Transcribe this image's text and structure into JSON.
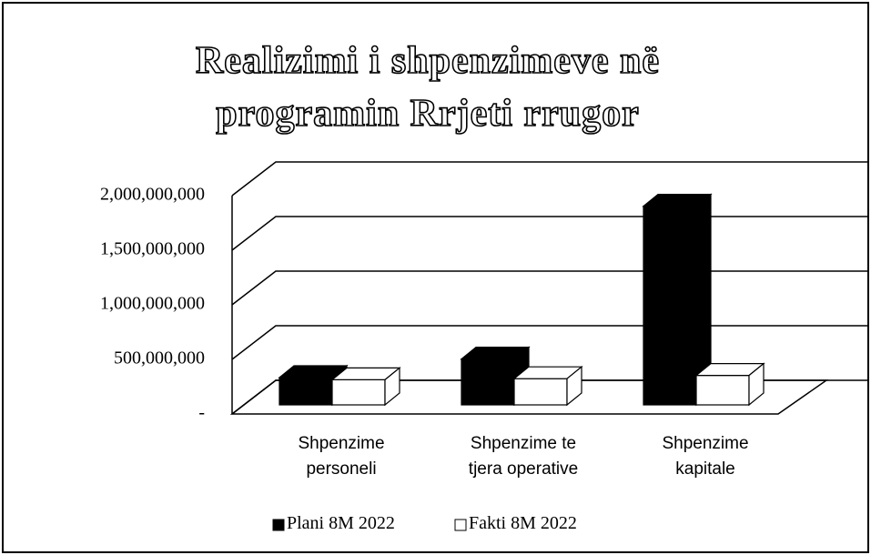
{
  "chart_data": {
    "type": "bar3d",
    "title": "Realizimi i shpenzimeve në programin Rrjeti rrugor",
    "categories": [
      "Shpenzime personeli",
      "Shpenzime te tjera operative",
      "Shpenzime kapitale"
    ],
    "series": [
      {
        "name": "Plani 8M 2022",
        "color": "#000000",
        "values": [
          250000000,
          420000000,
          1820000000
        ]
      },
      {
        "name": "Fakti 8M 2022",
        "color": "#ffffff",
        "values": [
          230000000,
          240000000,
          270000000
        ]
      }
    ],
    "ylim": [
      0,
      2000000000
    ],
    "yticks": [
      {
        "value": 0,
        "label": "-"
      },
      {
        "value": 500000000,
        "label": "500,000,000"
      },
      {
        "value": 1000000000,
        "label": "1,000,000,000"
      },
      {
        "value": 1500000000,
        "label": "1,500,000,000"
      },
      {
        "value": 2000000000,
        "label": "2,000,000,000"
      }
    ],
    "grid": true,
    "legend": "bottom"
  }
}
